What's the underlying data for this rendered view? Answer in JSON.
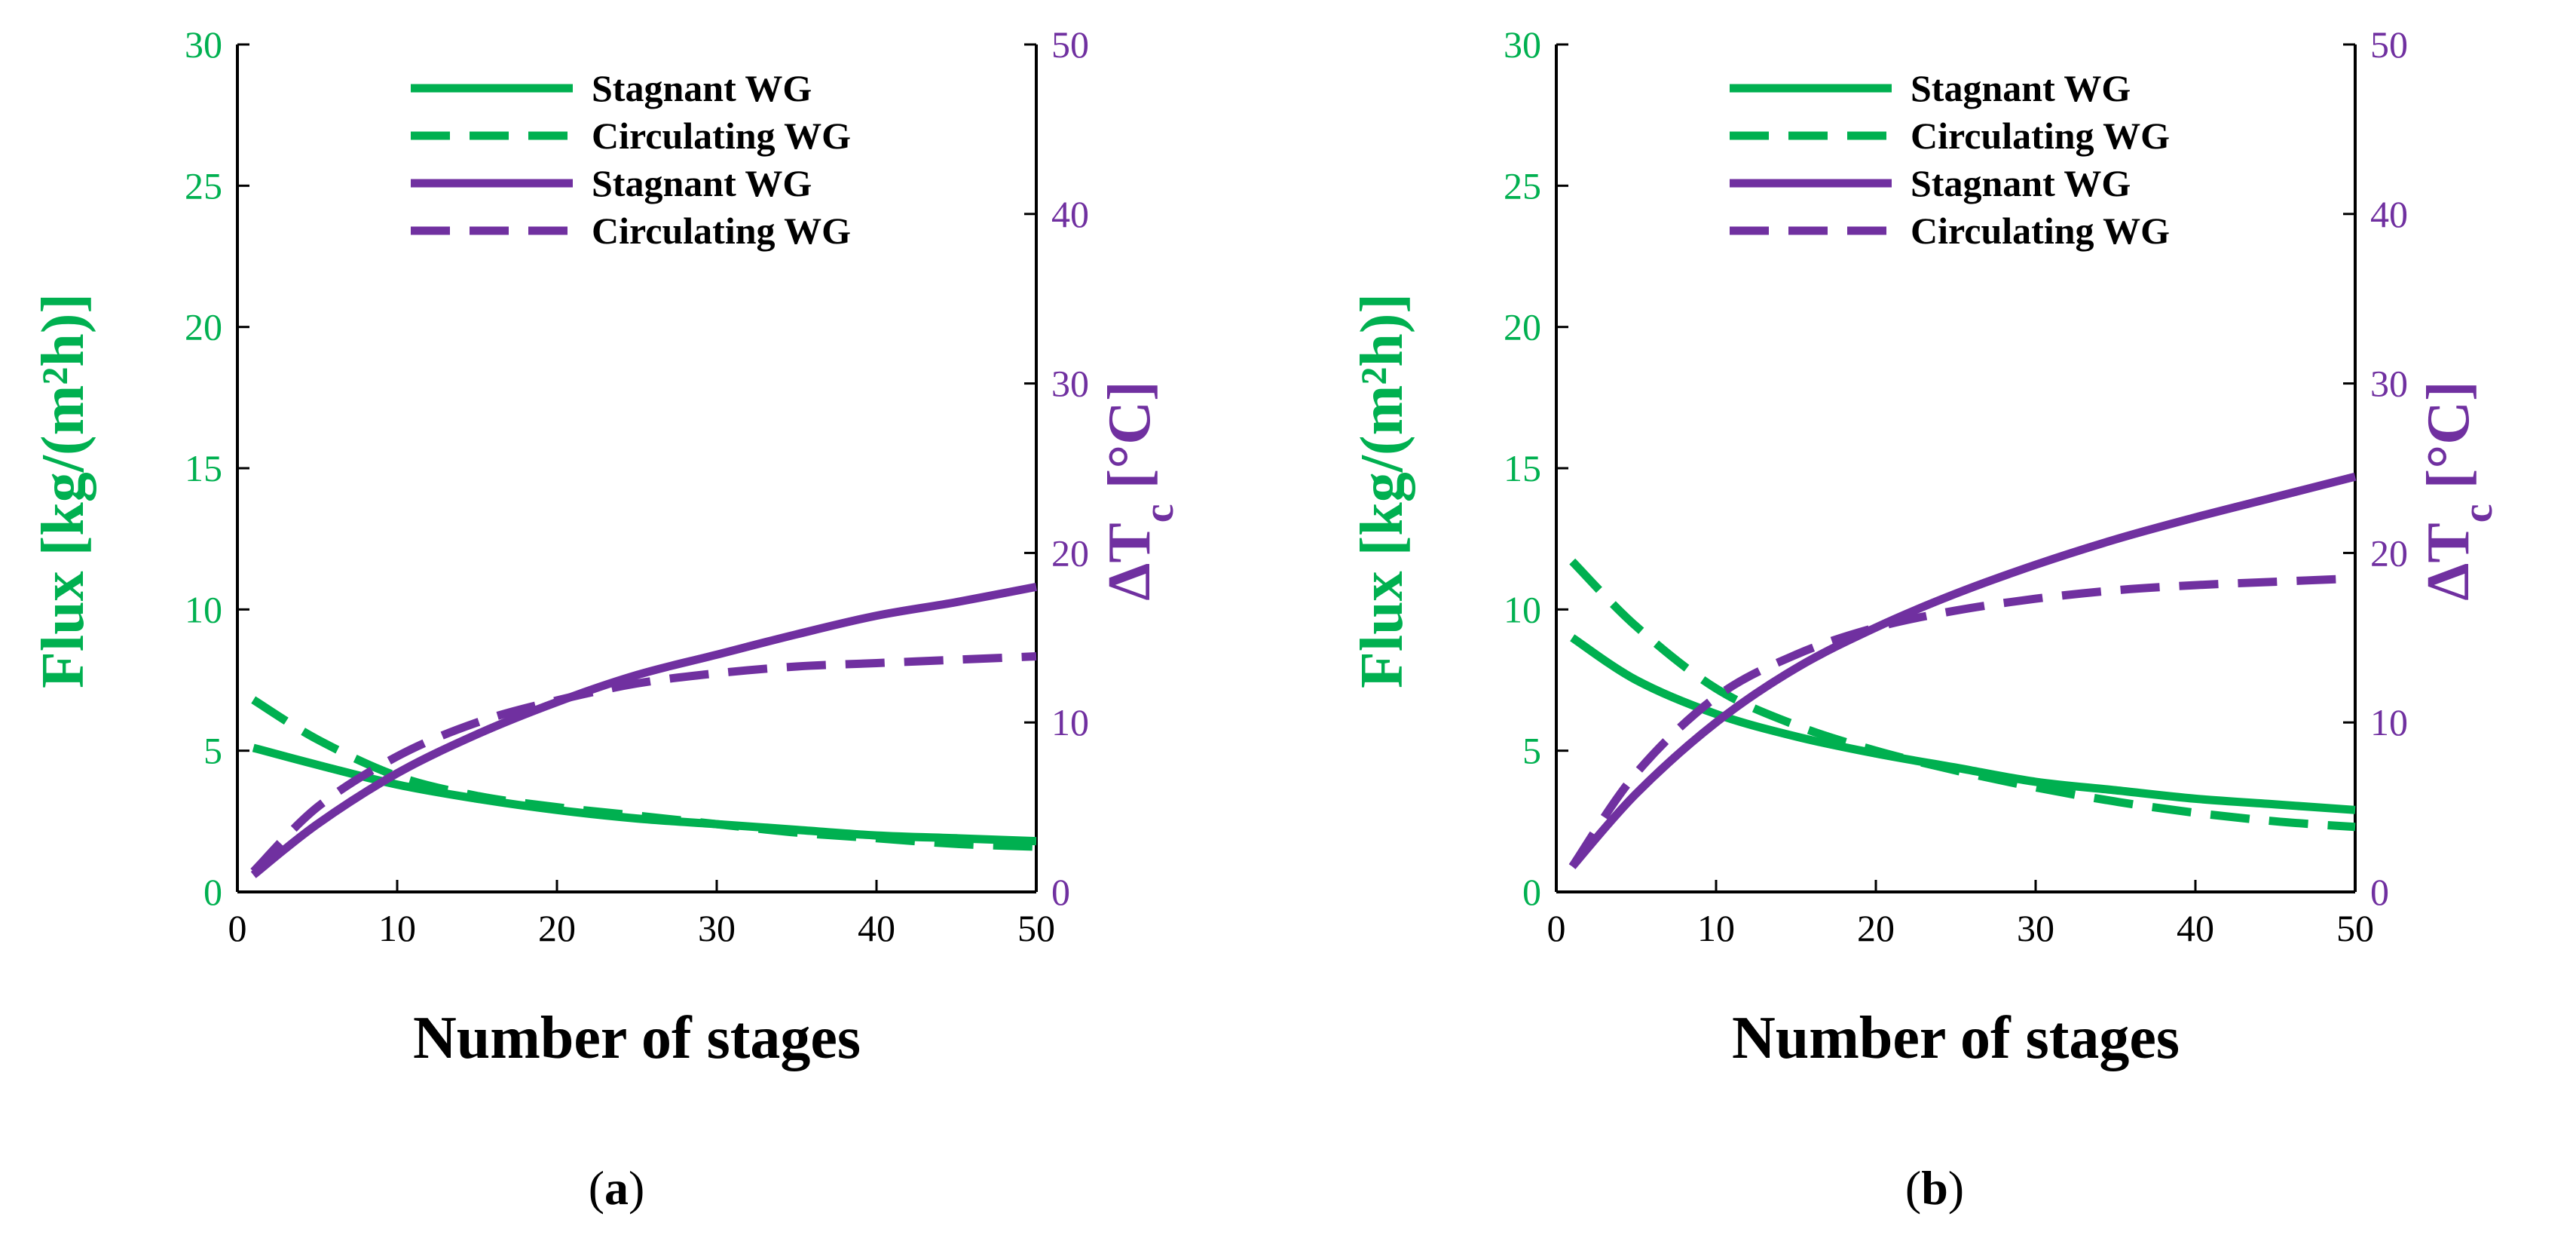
{
  "colors": {
    "flux": "#00B050",
    "dtc": "#7030A0",
    "axis": "#000000"
  },
  "chart_data": [
    {
      "type": "line",
      "panel_label": "a",
      "xlabel": "Number of stages",
      "ylabel_left": "Flux [kg/(m²h)]",
      "ylabel_right": "ΔTc [°C]",
      "xlim": [
        0,
        50
      ],
      "ylim_left": [
        0,
        30
      ],
      "ylim_right": [
        0,
        50
      ],
      "xticks": [
        0,
        10,
        20,
        30,
        40,
        50
      ],
      "yticks_left": [
        0,
        5,
        10,
        15,
        20,
        25,
        30
      ],
      "yticks_right": [
        0,
        10,
        20,
        30,
        40,
        50
      ],
      "legend_position": "top-center",
      "series": [
        {
          "name": "Stagnant WG",
          "quantity": "flux",
          "axis": "left",
          "style": "solid",
          "x": [
            1,
            5,
            10,
            15,
            20,
            25,
            30,
            35,
            40,
            45,
            50
          ],
          "y": [
            5.1,
            4.5,
            3.8,
            3.3,
            2.9,
            2.6,
            2.4,
            2.2,
            2.0,
            1.9,
            1.8
          ]
        },
        {
          "name": "Circulating WG",
          "quantity": "flux",
          "axis": "left",
          "style": "dashed",
          "x": [
            1,
            5,
            10,
            15,
            20,
            25,
            30,
            35,
            40,
            45,
            50
          ],
          "y": [
            6.8,
            5.4,
            4.1,
            3.4,
            3.0,
            2.7,
            2.4,
            2.1,
            1.9,
            1.7,
            1.6
          ]
        },
        {
          "name": "Stagnant WG",
          "quantity": "dtc",
          "axis": "right",
          "style": "solid",
          "x": [
            1,
            5,
            10,
            15,
            20,
            25,
            30,
            35,
            40,
            45,
            50
          ],
          "y": [
            1.0,
            4.0,
            7.0,
            9.3,
            11.2,
            12.8,
            14.0,
            15.2,
            16.3,
            17.1,
            18.0
          ]
        },
        {
          "name": "Circulating WG",
          "quantity": "dtc",
          "axis": "right",
          "style": "dashed",
          "x": [
            1,
            5,
            10,
            15,
            20,
            25,
            30,
            35,
            40,
            45,
            50
          ],
          "y": [
            1.2,
            5.0,
            8.0,
            10.0,
            11.3,
            12.3,
            12.9,
            13.3,
            13.5,
            13.7,
            13.9
          ]
        }
      ]
    },
    {
      "type": "line",
      "panel_label": "b",
      "xlabel": "Number of stages",
      "ylabel_left": "Flux [kg/(m²h)]",
      "ylabel_right": "ΔTc [°C]",
      "xlim": [
        0,
        50
      ],
      "ylim_left": [
        0,
        30
      ],
      "ylim_right": [
        0,
        50
      ],
      "xticks": [
        0,
        10,
        20,
        30,
        40,
        50
      ],
      "yticks_left": [
        0,
        5,
        10,
        15,
        20,
        25,
        30
      ],
      "yticks_right": [
        0,
        10,
        20,
        30,
        40,
        50
      ],
      "legend_position": "top-center",
      "series": [
        {
          "name": "Stagnant WG",
          "quantity": "flux",
          "axis": "left",
          "style": "solid",
          "x": [
            1,
            5,
            10,
            15,
            20,
            25,
            30,
            35,
            40,
            45,
            50
          ],
          "y": [
            9.0,
            7.5,
            6.3,
            5.5,
            4.9,
            4.4,
            3.9,
            3.6,
            3.3,
            3.1,
            2.9
          ]
        },
        {
          "name": "Circulating WG",
          "quantity": "flux",
          "axis": "left",
          "style": "dashed",
          "x": [
            1,
            5,
            10,
            15,
            20,
            25,
            30,
            35,
            40,
            45,
            50
          ],
          "y": [
            11.7,
            9.4,
            7.2,
            5.9,
            5.0,
            4.3,
            3.7,
            3.2,
            2.8,
            2.5,
            2.3
          ]
        },
        {
          "name": "Stagnant WG",
          "quantity": "dtc",
          "axis": "right",
          "style": "solid",
          "x": [
            1,
            5,
            10,
            15,
            20,
            25,
            30,
            35,
            40,
            45,
            50
          ],
          "y": [
            1.5,
            5.8,
            10.0,
            13.2,
            15.6,
            17.6,
            19.3,
            20.8,
            22.1,
            23.3,
            24.5
          ]
        },
        {
          "name": "Circulating WG",
          "quantity": "dtc",
          "axis": "right",
          "style": "dashed",
          "x": [
            1,
            5,
            10,
            15,
            20,
            25,
            30,
            35,
            40,
            45,
            50
          ],
          "y": [
            1.5,
            7.0,
            11.5,
            14.0,
            15.6,
            16.6,
            17.3,
            17.8,
            18.1,
            18.3,
            18.5
          ]
        }
      ]
    }
  ]
}
